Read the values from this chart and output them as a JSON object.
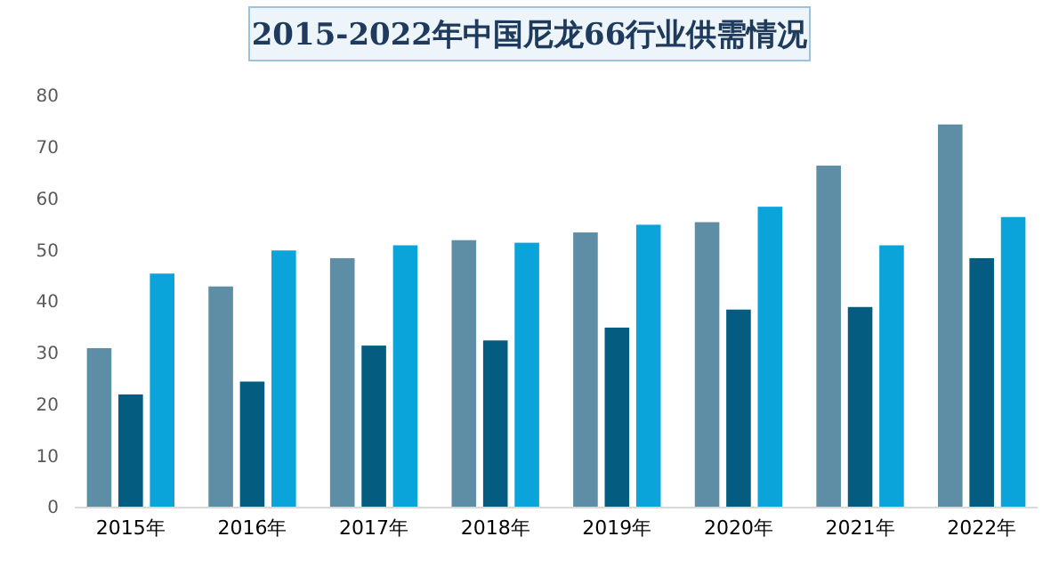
{
  "chart_data": {
    "type": "bar",
    "title": "2015-2022年中国尼龙66行业供需情况",
    "categories": [
      "2015年",
      "2016年",
      "2017年",
      "2018年",
      "2019年",
      "2020年",
      "2021年",
      "2022年"
    ],
    "series": [
      {
        "color": "#5d8ea6",
        "values": [
          31,
          43,
          48.5,
          52,
          53.5,
          55.5,
          66.5,
          74.5
        ]
      },
      {
        "color": "#045d80",
        "values": [
          22,
          24.5,
          31.5,
          32.5,
          35,
          38.5,
          39,
          48.5
        ]
      },
      {
        "color": "#0ba4da",
        "values": [
          45.5,
          50,
          51,
          51.5,
          55,
          58.5,
          51,
          56.5
        ]
      }
    ],
    "ylim": [
      0,
      80
    ],
    "yticks": [
      0,
      10,
      20,
      30,
      40,
      50,
      60,
      70,
      80
    ],
    "grid": false
  }
}
